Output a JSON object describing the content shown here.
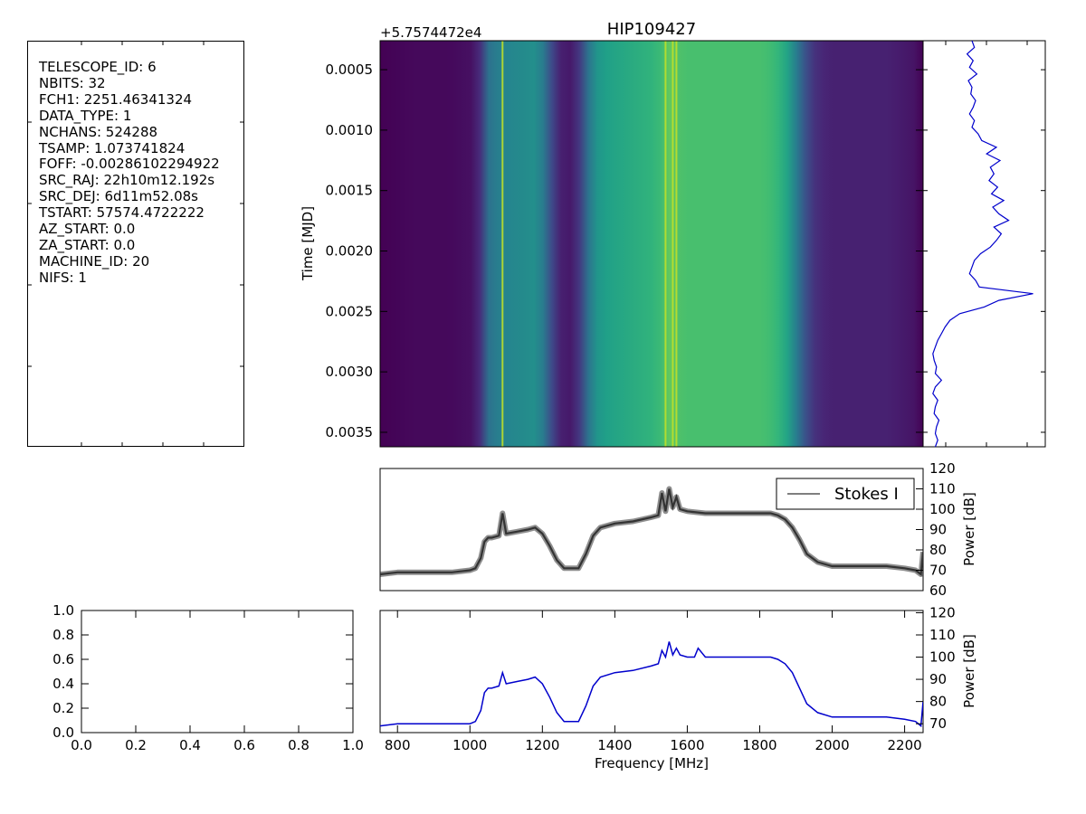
{
  "header_panel": {
    "lines": [
      "TELESCOPE_ID:  6",
      "NBITS:  32",
      "FCH1:  2251.46341324",
      "DATA_TYPE:  1",
      "NCHANS:  524288",
      "TSAMP:  1.073741824",
      "FOFF:  -0.00286102294922",
      "SRC_RAJ:  22h10m12.192s",
      "SRC_DEJ:  6d11m52.08s",
      "TSTART:  57574.4722222",
      "AZ_START:  0.0",
      "ZA_START:  0.0",
      "MACHINE_ID:  20",
      "NIFS:  1"
    ]
  },
  "colors": {
    "stokes_line": "#333333",
    "blue_line": "#0000cc",
    "viridis_dark": "#440154",
    "viridis_teal": "#21918c",
    "viridis_green": "#5ec962",
    "viridis_yellow": "#fde725"
  },
  "chart_data": [
    {
      "id": "waterfall",
      "type": "heatmap",
      "title": "HIP109427",
      "offset_label": "+5.7574472e4",
      "ylabel": "Time [MJD]",
      "yticks": [
        "0.0005",
        "0.0010",
        "0.0015",
        "0.0020",
        "0.0025",
        "0.0030",
        "0.0035"
      ],
      "yticks_values": [
        0.0005,
        0.001,
        0.0015,
        0.002,
        0.0025,
        0.003,
        0.0035
      ],
      "ylim": [
        0.00362,
        0.00026
      ],
      "xlim": [
        752,
        2251
      ],
      "colormap": "viridis",
      "power_range": [
        68,
        112
      ],
      "spectrum_x": [
        752,
        850,
        950,
        1010,
        1030,
        1045,
        1060,
        1100,
        1150,
        1180,
        1200,
        1220,
        1240,
        1260,
        1290,
        1310,
        1340,
        1380,
        1450,
        1520,
        1540,
        1560,
        1580,
        1600,
        1650,
        1700,
        1800,
        1840,
        1870,
        1900,
        1930,
        1960,
        2000,
        2050,
        2100,
        2150,
        2200,
        2240,
        2251
      ],
      "spectrum_y": [
        68,
        69,
        69,
        70,
        74,
        83,
        86,
        88,
        89,
        90,
        87,
        80,
        73,
        71,
        71,
        78,
        90,
        93,
        95,
        97,
        100,
        102,
        99,
        99,
        99,
        99,
        99,
        98,
        95,
        87,
        78,
        73,
        72,
        72,
        72,
        72,
        71,
        70,
        68
      ],
      "bright_lines": [
        1090,
        1540,
        1560,
        1570
      ]
    },
    {
      "id": "time-series",
      "type": "line",
      "xlim": [
        0.00362,
        0.00026
      ],
      "values": [
        0.4,
        0.42,
        0.36,
        0.41,
        0.38,
        0.44,
        0.37,
        0.4,
        0.39,
        0.43,
        0.41,
        0.38,
        0.42,
        0.4,
        0.45,
        0.48,
        0.6,
        0.52,
        0.63,
        0.55,
        0.58,
        0.54,
        0.61,
        0.56,
        0.66,
        0.57,
        0.62,
        0.7,
        0.58,
        0.64,
        0.6,
        0.55,
        0.47,
        0.42,
        0.4,
        0.38,
        0.43,
        0.46,
        0.9,
        0.62,
        0.5,
        0.3,
        0.22,
        0.18,
        0.15,
        0.12,
        0.1,
        0.08,
        0.09,
        0.11,
        0.1,
        0.15,
        0.1,
        0.08,
        0.12,
        0.1,
        0.09,
        0.13,
        0.11,
        0.1,
        0.12,
        0.1
      ]
    },
    {
      "id": "spectrum",
      "type": "line",
      "legend": [
        "Stokes I"
      ],
      "ylabel": "Power [dB]",
      "ylim": [
        60,
        120
      ],
      "yticks": [
        60,
        70,
        80,
        90,
        100,
        110,
        120
      ],
      "xlim": [
        752,
        2251
      ],
      "x": [
        752,
        800,
        850,
        900,
        950,
        1000,
        1015,
        1030,
        1040,
        1050,
        1060,
        1080,
        1090,
        1100,
        1130,
        1160,
        1180,
        1200,
        1220,
        1240,
        1260,
        1280,
        1300,
        1320,
        1340,
        1360,
        1400,
        1450,
        1500,
        1520,
        1530,
        1540,
        1550,
        1560,
        1570,
        1580,
        1600,
        1650,
        1700,
        1750,
        1800,
        1830,
        1850,
        1870,
        1890,
        1910,
        1930,
        1960,
        2000,
        2050,
        2100,
        2150,
        2200,
        2230,
        2245,
        2251
      ],
      "y": [
        68,
        69,
        69,
        69,
        69,
        70,
        71,
        76,
        84,
        86,
        86,
        87,
        98,
        88,
        89,
        90,
        91,
        88,
        82,
        75,
        71,
        71,
        71,
        78,
        87,
        91,
        93,
        94,
        96,
        97,
        108,
        99,
        110,
        101,
        106,
        100,
        99,
        98,
        98,
        98,
        98,
        98,
        97,
        95,
        91,
        85,
        78,
        74,
        72,
        72,
        72,
        72,
        71,
        70,
        68,
        79
      ]
    },
    {
      "id": "spectrum-blue",
      "type": "line",
      "xlabel": "Frequency [MHz]",
      "ylabel": "Power [dB]",
      "ylim": [
        66,
        121
      ],
      "yticks": [
        70,
        80,
        90,
        100,
        110,
        120
      ],
      "xlim": [
        752,
        2251
      ],
      "xticks": [
        800,
        1000,
        1200,
        1400,
        1600,
        1800,
        2000,
        2200
      ],
      "x": [
        752,
        800,
        850,
        900,
        950,
        1000,
        1015,
        1030,
        1040,
        1050,
        1060,
        1080,
        1090,
        1100,
        1130,
        1160,
        1180,
        1200,
        1220,
        1240,
        1260,
        1280,
        1300,
        1320,
        1340,
        1360,
        1400,
        1450,
        1500,
        1520,
        1530,
        1540,
        1550,
        1560,
        1570,
        1580,
        1600,
        1620,
        1630,
        1650,
        1700,
        1750,
        1800,
        1830,
        1850,
        1870,
        1890,
        1910,
        1930,
        1960,
        2000,
        2050,
        2100,
        2150,
        2200,
        2230,
        2245,
        2251
      ],
      "y": [
        69,
        70,
        70,
        70,
        70,
        70,
        71,
        76,
        84,
        86,
        86,
        87,
        93,
        88,
        89,
        90,
        91,
        88,
        82,
        75,
        71,
        71,
        71,
        78,
        87,
        91,
        93,
        94,
        96,
        97,
        103,
        100,
        107,
        101,
        104,
        101,
        100,
        100,
        104,
        100,
        100,
        100,
        100,
        100,
        99,
        97,
        93,
        86,
        79,
        75,
        73,
        73,
        73,
        73,
        72,
        71,
        69,
        80
      ]
    },
    {
      "id": "empty-axes",
      "type": "line",
      "xlim": [
        0,
        1
      ],
      "ylim": [
        0,
        1
      ],
      "xticks": [
        "0.0",
        "0.2",
        "0.4",
        "0.6",
        "0.8",
        "1.0"
      ],
      "yticks": [
        "0.0",
        "0.2",
        "0.4",
        "0.6",
        "0.8",
        "1.0"
      ]
    }
  ]
}
